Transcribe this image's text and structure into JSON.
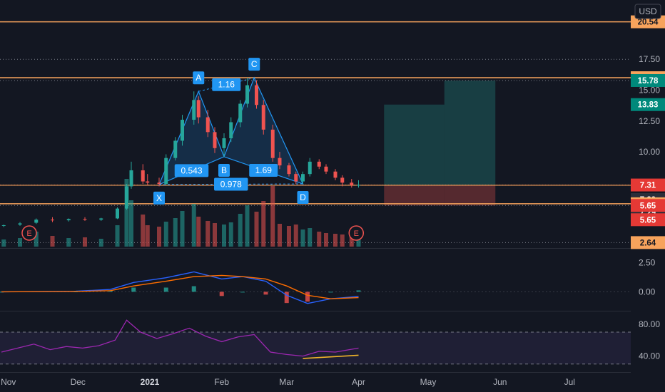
{
  "currency": "USD",
  "colors": {
    "background": "#131722",
    "up": "#26a69a",
    "down": "#ef5350",
    "level_line": "#f7a35c",
    "pattern": "#2196f3",
    "macd": "#2962ff",
    "signal": "#ff6d00",
    "rsi": "#9c27b0",
    "divergence": "#f0b429"
  },
  "price_axis": {
    "ticks": [
      "17.50",
      "15.00",
      "12.50",
      "10.00"
    ],
    "badges": [
      {
        "text": "20.54",
        "price": 20.54,
        "color": "#f7a35c",
        "text_color": "#131722",
        "key": "b2054"
      },
      {
        "text": "16.01",
        "price": 16.01,
        "color": "#f7a35c",
        "text_color": "#131722",
        "key": "b1601"
      },
      {
        "text": "15.78",
        "price": 15.78,
        "color": "#00897b",
        "text_color": "#ffffff",
        "key": "b1578"
      },
      {
        "text": "13.83",
        "price": 13.83,
        "color": "#00897b",
        "text_color": "#ffffff",
        "key": "b1383"
      },
      {
        "text": "7.31",
        "price": 7.31,
        "color": "#e53935",
        "text_color": "#ffffff",
        "key": "b731"
      },
      {
        "text": "7.29",
        "price": 7.29,
        "color": "#2a2e39",
        "text_color": "#ffffff",
        "key": "b729a",
        "offset": 20
      },
      {
        "text": "7.29",
        "price": 7.29,
        "color": "#2a2e39",
        "text_color": "#ffffff",
        "key": "b729b",
        "offset": 38
      },
      {
        "text": "5.79",
        "price": 5.79,
        "color": "#f7a35c",
        "text_color": "#131722",
        "key": "b579"
      },
      {
        "text": "5.65",
        "price": 5.65,
        "color": "#e53935",
        "text_color": "#ffffff",
        "key": "b565a"
      },
      {
        "text": "5.65",
        "price": 5.65,
        "color": "#e53935",
        "text_color": "#ffffff",
        "key": "b565b",
        "offset": 20
      },
      {
        "text": "2.64",
        "price": 2.64,
        "color": "#f7a35c",
        "text_color": "#131722",
        "key": "b264"
      }
    ]
  },
  "macd_axis": {
    "ticks": [
      "2.50",
      "0.00"
    ]
  },
  "rsi_axis": {
    "ticks": [
      "80.00",
      "40.00"
    ]
  },
  "time_axis": {
    "labels": [
      {
        "text": "Nov",
        "bold": false
      },
      {
        "text": "Dec",
        "bold": false
      },
      {
        "text": "2021",
        "bold": true
      },
      {
        "text": "Feb",
        "bold": false
      },
      {
        "text": "Mar",
        "bold": false
      },
      {
        "text": "Apr",
        "bold": false
      },
      {
        "text": "May",
        "bold": false
      },
      {
        "text": "Jun",
        "bold": false
      },
      {
        "text": "Jul",
        "bold": false
      }
    ]
  },
  "pattern": {
    "points": [
      {
        "label": "X",
        "date": "2021-01-05",
        "price": 7.35
      },
      {
        "label": "A",
        "date": "2021-01-22",
        "price": 14.9
      },
      {
        "label": "B",
        "date": "2021-02-02",
        "price": 9.6
      },
      {
        "label": "C",
        "date": "2021-02-15",
        "price": 16.0
      },
      {
        "label": "D",
        "date": "2021-03-08",
        "price": 7.4
      }
    ],
    "ratios": [
      {
        "text": "1.16"
      },
      {
        "text": "0.543"
      },
      {
        "text": "1.69"
      },
      {
        "text": "0.978"
      }
    ]
  },
  "earnings_markers": [
    {
      "label": "E",
      "date": "2020-11-10"
    },
    {
      "label": "E",
      "date": "2021-03-31"
    }
  ],
  "chart_data": [
    {
      "type": "candlestick",
      "title": "",
      "y_unit": "USD",
      "ylim": [
        2.2,
        21.5
      ],
      "x_range": [
        "2020-10-29",
        "2021-07-20"
      ],
      "horizontal_levels": [
        20.54,
        17.5,
        16.01,
        15.78,
        7.31,
        7.29,
        5.79,
        5.65,
        2.64
      ],
      "target_zones": [
        {
          "x": [
            "2021-04-12",
            "2021-05-08"
          ],
          "entry": 7.3,
          "target": 13.83,
          "stop": 5.65
        },
        {
          "x": [
            "2021-05-08",
            "2021-05-30"
          ],
          "entry": 7.3,
          "target": 15.78,
          "stop": 5.65
        }
      ],
      "series": [
        {
          "x": "2020-10-30",
          "ohlc": [
            4.0,
            4.1,
            3.9,
            4.05
          ],
          "volume": 1.0
        },
        {
          "x": "2020-11-06",
          "ohlc": [
            4.1,
            4.3,
            4.0,
            4.2
          ],
          "volume": 1.2
        },
        {
          "x": "2020-11-13",
          "ohlc": [
            4.25,
            4.6,
            4.15,
            4.5
          ],
          "volume": 2.1
        },
        {
          "x": "2020-11-20",
          "ohlc": [
            4.5,
            4.7,
            4.3,
            4.45
          ],
          "volume": 1.5
        },
        {
          "x": "2020-11-27",
          "ohlc": [
            4.45,
            4.6,
            4.35,
            4.55
          ],
          "volume": 1.2
        },
        {
          "x": "2020-12-04",
          "ohlc": [
            4.55,
            4.7,
            4.4,
            4.5
          ],
          "volume": 1.3
        },
        {
          "x": "2020-12-11",
          "ohlc": [
            4.5,
            4.65,
            4.4,
            4.6
          ],
          "volume": 1.1
        },
        {
          "x": "2020-12-18",
          "ohlc": [
            4.6,
            5.5,
            4.55,
            5.4
          ],
          "volume": 3.0
        },
        {
          "x": "2020-12-22",
          "ohlc": [
            5.4,
            7.4,
            5.3,
            7.2
          ],
          "volume": 9.5
        },
        {
          "x": "2020-12-24",
          "ohlc": [
            7.2,
            9.2,
            7.0,
            8.5
          ],
          "volume": 6.5
        },
        {
          "x": "2020-12-29",
          "ohlc": [
            8.5,
            9.0,
            7.4,
            7.6
          ],
          "volume": 4.5
        },
        {
          "x": "2020-12-31",
          "ohlc": [
            7.6,
            8.2,
            7.3,
            7.5
          ],
          "volume": 3.0
        },
        {
          "x": "2021-01-05",
          "ohlc": [
            7.5,
            7.9,
            7.2,
            7.4
          ],
          "volume": 2.8
        },
        {
          "x": "2021-01-08",
          "ohlc": [
            7.4,
            9.8,
            7.3,
            9.5
          ],
          "volume": 3.5
        },
        {
          "x": "2021-01-12",
          "ohlc": [
            9.5,
            11.2,
            9.3,
            10.9
          ],
          "volume": 4.0
        },
        {
          "x": "2021-01-15",
          "ohlc": [
            10.9,
            13.0,
            10.5,
            12.6
          ],
          "volume": 5.0
        },
        {
          "x": "2021-01-20",
          "ohlc": [
            12.6,
            14.9,
            12.2,
            14.2
          ],
          "volume": 6.0
        },
        {
          "x": "2021-01-22",
          "ohlc": [
            14.2,
            14.5,
            12.3,
            12.8
          ],
          "volume": 4.2
        },
        {
          "x": "2021-01-26",
          "ohlc": [
            12.8,
            13.4,
            11.2,
            11.6
          ],
          "volume": 3.6
        },
        {
          "x": "2021-01-29",
          "ohlc": [
            11.6,
            12.0,
            9.9,
            10.3
          ],
          "volume": 3.3
        },
        {
          "x": "2021-02-02",
          "ohlc": [
            10.3,
            11.5,
            9.6,
            11.1
          ],
          "volume": 3.1
        },
        {
          "x": "2021-02-05",
          "ohlc": [
            11.1,
            12.8,
            10.8,
            12.4
          ],
          "volume": 3.4
        },
        {
          "x": "2021-02-09",
          "ohlc": [
            12.4,
            14.2,
            12.0,
            13.9
          ],
          "volume": 4.6
        },
        {
          "x": "2021-02-12",
          "ohlc": [
            13.9,
            16.0,
            13.6,
            15.4
          ],
          "volume": 5.8
        },
        {
          "x": "2021-02-16",
          "ohlc": [
            15.4,
            15.8,
            13.5,
            13.8
          ],
          "volume": 4.9
        },
        {
          "x": "2021-02-19",
          "ohlc": [
            13.8,
            14.2,
            11.4,
            11.8
          ],
          "volume": 6.4
        },
        {
          "x": "2021-02-23",
          "ohlc": [
            11.8,
            12.2,
            9.2,
            9.5
          ],
          "volume": 8.5
        },
        {
          "x": "2021-02-26",
          "ohlc": [
            9.5,
            10.0,
            8.6,
            8.9
          ],
          "volume": 3.2
        },
        {
          "x": "2021-03-02",
          "ohlc": [
            8.9,
            9.1,
            8.0,
            8.2
          ],
          "volume": 2.9
        },
        {
          "x": "2021-03-05",
          "ohlc": [
            8.2,
            8.4,
            7.4,
            7.6
          ],
          "volume": 3.1
        },
        {
          "x": "2021-03-08",
          "ohlc": [
            7.6,
            8.4,
            7.4,
            8.2
          ],
          "volume": 2.4
        },
        {
          "x": "2021-03-11",
          "ohlc": [
            8.2,
            9.5,
            8.0,
            9.2
          ],
          "volume": 2.6
        },
        {
          "x": "2021-03-15",
          "ohlc": [
            9.2,
            9.4,
            8.6,
            8.8
          ],
          "volume": 2.1
        },
        {
          "x": "2021-03-18",
          "ohlc": [
            8.8,
            9.0,
            8.2,
            8.4
          ],
          "volume": 1.9
        },
        {
          "x": "2021-03-22",
          "ohlc": [
            8.4,
            8.6,
            7.7,
            7.9
          ],
          "volume": 1.8
        },
        {
          "x": "2021-03-25",
          "ohlc": [
            7.9,
            8.1,
            7.2,
            7.5
          ],
          "volume": 1.7
        },
        {
          "x": "2021-03-29",
          "ohlc": [
            7.5,
            7.8,
            7.1,
            7.3
          ],
          "volume": 1.5
        },
        {
          "x": "2021-04-01",
          "ohlc": [
            7.3,
            7.7,
            7.1,
            7.31
          ],
          "volume": 1.4
        }
      ]
    },
    {
      "type": "line",
      "title": "",
      "ylim": [
        -1.5,
        3.5
      ],
      "series": [
        {
          "x": [
            "2020-10-29",
            "2020-11-30",
            "2020-12-15",
            "2020-12-25",
            "2021-01-08",
            "2021-01-20",
            "2021-02-01",
            "2021-02-10",
            "2021-02-20",
            "2021-03-01",
            "2021-03-10",
            "2021-03-20",
            "2021-04-01"
          ],
          "values": [
            0.0,
            0.05,
            0.2,
            0.8,
            1.2,
            1.7,
            1.1,
            1.3,
            0.9,
            -0.3,
            -1.0,
            -0.6,
            -0.4
          ]
        },
        {
          "x": [
            "2020-10-29",
            "2020-11-30",
            "2020-12-15",
            "2020-12-25",
            "2021-01-08",
            "2021-01-20",
            "2021-02-01",
            "2021-02-10",
            "2021-02-20",
            "2021-03-01",
            "2021-03-10",
            "2021-03-20",
            "2021-04-01"
          ],
          "values": [
            0.0,
            0.03,
            0.1,
            0.5,
            0.9,
            1.3,
            1.4,
            1.3,
            1.1,
            0.5,
            -0.3,
            -0.6,
            -0.5
          ]
        }
      ]
    },
    {
      "type": "line",
      "title": "",
      "ylim": [
        20,
        95
      ],
      "reference_lines": [
        70,
        30
      ],
      "series": [
        {
          "x": [
            "2020-10-29",
            "2020-11-05",
            "2020-11-12",
            "2020-11-19",
            "2020-11-26",
            "2020-12-03",
            "2020-12-10",
            "2020-12-17",
            "2020-12-22",
            "2020-12-28",
            "2021-01-04",
            "2021-01-11",
            "2021-01-18",
            "2021-01-25",
            "2021-02-01",
            "2021-02-08",
            "2021-02-15",
            "2021-02-22",
            "2021-03-01",
            "2021-03-08",
            "2021-03-15",
            "2021-03-22",
            "2021-04-01"
          ],
          "values": [
            45,
            50,
            55,
            48,
            52,
            50,
            53,
            60,
            85,
            70,
            62,
            68,
            75,
            65,
            58,
            64,
            67,
            45,
            42,
            40,
            46,
            45,
            50
          ]
        }
      ]
    }
  ]
}
